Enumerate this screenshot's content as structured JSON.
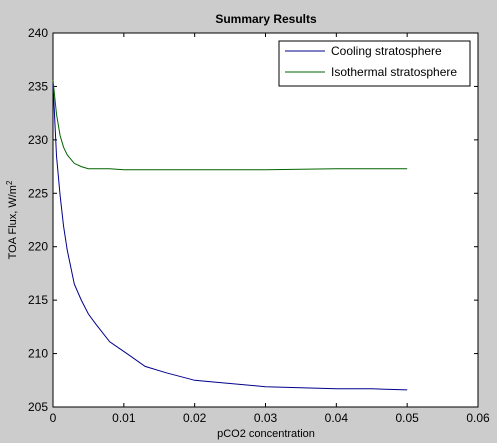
{
  "chart_data": {
    "type": "line",
    "title": "Summary Results",
    "xlabel": "pCO2 concentration",
    "ylabel": "TOA Flux, W/m",
    "ylabel_superscript": "2",
    "xlim": [
      0,
      0.06
    ],
    "ylim": [
      205,
      240
    ],
    "x_ticks": [
      "0",
      "0.01",
      "0.02",
      "0.03",
      "0.04",
      "0.05",
      "0.06"
    ],
    "x_tick_values": [
      0,
      0.01,
      0.02,
      0.03,
      0.04,
      0.05,
      0.06
    ],
    "y_ticks": [
      "205",
      "210",
      "215",
      "220",
      "225",
      "230",
      "235",
      "240"
    ],
    "y_tick_values": [
      205,
      210,
      215,
      220,
      225,
      230,
      235,
      240
    ],
    "grid": false,
    "legend_position": "top-right",
    "series": [
      {
        "name": "Cooling stratosphere",
        "color": "#00008b",
        "x": [
          0,
          0.0005,
          0.001,
          0.0015,
          0.002,
          0.003,
          0.004,
          0.005,
          0.006,
          0.008,
          0.01,
          0.013,
          0.016,
          0.02,
          0.025,
          0.03,
          0.035,
          0.04,
          0.045,
          0.05
        ],
        "y": [
          235.3,
          228.5,
          224.8,
          221.9,
          219.7,
          216.5,
          215.0,
          213.7,
          212.8,
          211.1,
          210.2,
          208.8,
          208.2,
          207.5,
          207.2,
          206.9,
          206.8,
          206.7,
          206.7,
          206.6
        ]
      },
      {
        "name": "Isothermal stratosphere",
        "color": "#006400",
        "x": [
          0,
          0.0005,
          0.001,
          0.0015,
          0.002,
          0.003,
          0.004,
          0.005,
          0.006,
          0.008,
          0.01,
          0.015,
          0.02,
          0.03,
          0.04,
          0.05
        ],
        "y": [
          235.6,
          232.4,
          230.4,
          229.3,
          228.6,
          227.8,
          227.5,
          227.3,
          227.3,
          227.3,
          227.2,
          227.2,
          227.2,
          227.2,
          227.3,
          227.3
        ]
      }
    ]
  }
}
